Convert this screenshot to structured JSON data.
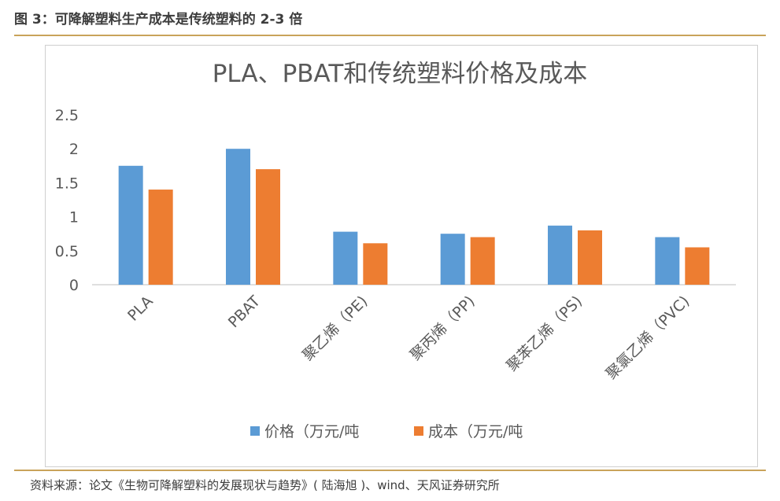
{
  "figure_header": "图 3：可降解塑料生产成本是传统塑料的 2-3 倍",
  "source_note": "资料来源：论文《生物可降解塑料的发展现状与趋势》( 陆海旭 )、wind、天风证券研究所",
  "colors": {
    "price": "#5b9bd5",
    "cost": "#ed7d31",
    "axis": "#bfbfbf",
    "text": "#595959",
    "accent_rule": "#c9a35a"
  },
  "chart_data": {
    "type": "bar",
    "title": "PLA、PBAT和传统塑料价格及成本",
    "categories": [
      "PLA",
      "PBAT",
      "聚乙烯（PE)",
      "聚丙烯（PP)",
      "聚苯乙烯（PS)",
      "聚氯乙烯（PVC)"
    ],
    "series": [
      {
        "name": "价格（万元/吨",
        "values": [
          1.75,
          2.0,
          0.78,
          0.75,
          0.87,
          0.7
        ]
      },
      {
        "name": "成本（万元/吨",
        "values": [
          1.4,
          1.7,
          0.61,
          0.7,
          0.8,
          0.55
        ]
      }
    ],
    "yticks": [
      "0",
      "0.5",
      "1",
      "1.5",
      "2",
      "2.5"
    ],
    "ylim": [
      0,
      2.5
    ],
    "grid": false,
    "legend_position": "bottom"
  }
}
